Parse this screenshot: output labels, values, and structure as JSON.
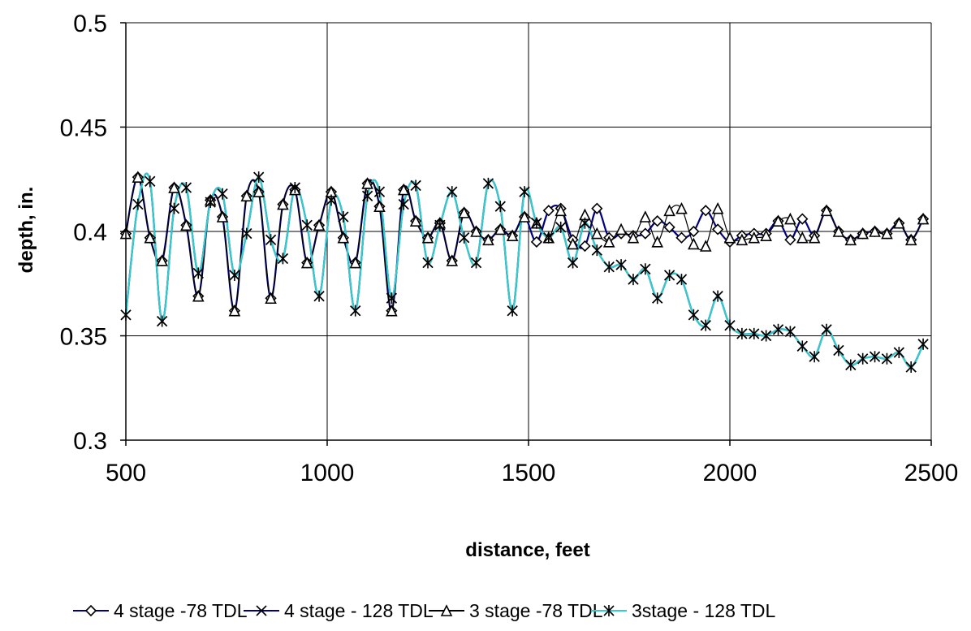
{
  "chart_data": {
    "type": "line",
    "title": "",
    "xlabel": "distance, feet",
    "ylabel": "depth, in.",
    "xlim": [
      500,
      2500
    ],
    "ylim": [
      0.3,
      0.5
    ],
    "x_ticks": [
      "500",
      "1000",
      "1500",
      "2000",
      "2500"
    ],
    "y_ticks": [
      "0.3",
      "0.35",
      "0.4",
      "0.45",
      "0.5"
    ],
    "grid": true,
    "legend_position": "bottom",
    "x": [
      500,
      530,
      560,
      590,
      620,
      650,
      680,
      710,
      740,
      770,
      800,
      830,
      860,
      890,
      920,
      950,
      980,
      1010,
      1040,
      1070,
      1100,
      1130,
      1160,
      1190,
      1220,
      1250,
      1280,
      1310,
      1340,
      1370,
      1400,
      1430,
      1460,
      1490,
      1520,
      1550,
      1580,
      1610,
      1640,
      1670,
      1700,
      1730,
      1760,
      1790,
      1820,
      1850,
      1880,
      1910,
      1940,
      1970,
      2000,
      2030,
      2060,
      2090,
      2120,
      2150,
      2180,
      2210,
      2240,
      2270,
      2300,
      2330,
      2360,
      2390,
      2420,
      2450,
      2480
    ],
    "series": [
      {
        "name": "4 stage -78 TDL",
        "color": "#000080",
        "marker": "diamond",
        "values": [
          0.399,
          0.426,
          0.397,
          0.386,
          0.421,
          0.403,
          0.369,
          0.415,
          0.407,
          0.362,
          0.417,
          0.419,
          0.368,
          0.413,
          0.42,
          0.385,
          0.403,
          0.419,
          0.397,
          0.385,
          0.423,
          0.412,
          0.362,
          0.42,
          0.405,
          0.397,
          0.404,
          0.386,
          0.409,
          0.4,
          0.396,
          0.401,
          0.398,
          0.407,
          0.395,
          0.41,
          0.411,
          0.396,
          0.393,
          0.411,
          0.397,
          0.399,
          0.398,
          0.399,
          0.405,
          0.402,
          0.397,
          0.4,
          0.41,
          0.401,
          0.395,
          0.398,
          0.399,
          0.399,
          0.405,
          0.396,
          0.406,
          0.398,
          0.41,
          0.4,
          0.396,
          0.399,
          0.4,
          0.399,
          0.404,
          0.396,
          0.406
        ]
      },
      {
        "name": "4 stage - 128 TDL",
        "color": "#000080",
        "marker": "x",
        "values": [
          0.36,
          0.413,
          0.424,
          0.357,
          0.411,
          0.421,
          0.38,
          0.414,
          0.418,
          0.379,
          0.399,
          0.426,
          0.396,
          0.387,
          0.421,
          0.403,
          0.369,
          0.415,
          0.407,
          0.362,
          0.417,
          0.419,
          0.368,
          0.413,
          0.422,
          0.385,
          0.403,
          0.419,
          0.397,
          0.385,
          0.423,
          0.412,
          0.362,
          0.419,
          0.404,
          0.397,
          0.402,
          0.385,
          0.404,
          0.391,
          0.383,
          0.384,
          0.377,
          0.382,
          0.368,
          0.379,
          0.377,
          0.36,
          0.355,
          0.369,
          0.355,
          0.351,
          0.351,
          0.35,
          0.353,
          0.352,
          0.345,
          0.34,
          0.353,
          0.343,
          0.336,
          0.339,
          0.34,
          0.339,
          0.342,
          0.335,
          0.346
        ]
      },
      {
        "name": "3 stage -78 TDL",
        "color": "#000000",
        "marker": "triangle",
        "values": [
          0.399,
          0.426,
          0.397,
          0.386,
          0.421,
          0.403,
          0.369,
          0.415,
          0.407,
          0.362,
          0.417,
          0.419,
          0.368,
          0.413,
          0.42,
          0.385,
          0.403,
          0.419,
          0.397,
          0.385,
          0.423,
          0.412,
          0.362,
          0.42,
          0.405,
          0.397,
          0.404,
          0.386,
          0.409,
          0.4,
          0.396,
          0.401,
          0.398,
          0.407,
          0.404,
          0.397,
          0.41,
          0.394,
          0.408,
          0.399,
          0.395,
          0.401,
          0.397,
          0.407,
          0.395,
          0.41,
          0.411,
          0.394,
          0.393,
          0.411,
          0.397,
          0.396,
          0.397,
          0.398,
          0.405,
          0.406,
          0.397,
          0.397,
          0.41,
          0.4,
          0.396,
          0.399,
          0.4,
          0.399,
          0.404,
          0.396,
          0.406
        ]
      },
      {
        "name": "3stage - 128 TDL",
        "color": "#33CCCC",
        "marker": "asterisk",
        "values": [
          0.36,
          0.413,
          0.424,
          0.357,
          0.411,
          0.421,
          0.38,
          0.414,
          0.418,
          0.379,
          0.399,
          0.426,
          0.396,
          0.387,
          0.421,
          0.403,
          0.369,
          0.415,
          0.407,
          0.362,
          0.417,
          0.419,
          0.368,
          0.413,
          0.422,
          0.385,
          0.403,
          0.419,
          0.397,
          0.385,
          0.423,
          0.412,
          0.362,
          0.419,
          0.404,
          0.397,
          0.402,
          0.385,
          0.404,
          0.391,
          0.383,
          0.384,
          0.377,
          0.382,
          0.368,
          0.379,
          0.377,
          0.36,
          0.355,
          0.369,
          0.355,
          0.351,
          0.351,
          0.35,
          0.353,
          0.352,
          0.345,
          0.34,
          0.353,
          0.343,
          0.336,
          0.339,
          0.34,
          0.339,
          0.342,
          0.335,
          0.346
        ]
      }
    ]
  }
}
